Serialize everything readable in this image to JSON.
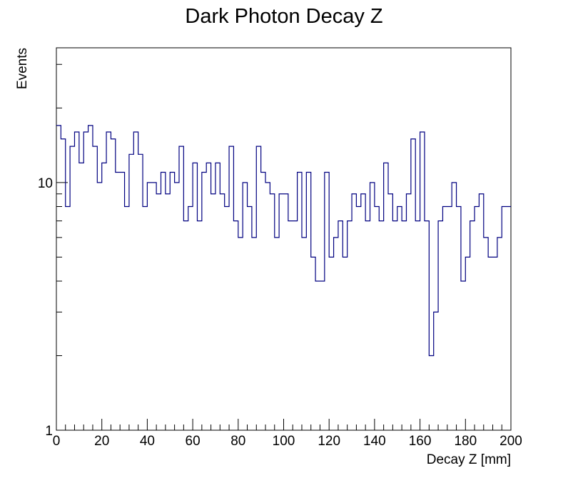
{
  "chart_data": {
    "type": "histogram",
    "title": "Dark Photon Decay Z",
    "xlabel": "Decay Z [mm]",
    "ylabel": "Events",
    "xlim": [
      0,
      200
    ],
    "ylim": [
      1,
      35
    ],
    "y_scale": "log",
    "grid": false,
    "legend": "none",
    "line_color": "#000080",
    "x_ticks": [
      0,
      20,
      40,
      60,
      80,
      100,
      120,
      140,
      160,
      180,
      200
    ],
    "x_tick_labels": [
      "0",
      "20",
      "40",
      "60",
      "80",
      "100",
      "120",
      "140",
      "160",
      "180",
      "200"
    ],
    "y_tick_labels": [
      {
        "value": 1,
        "label": "1"
      },
      {
        "value": 10,
        "label": "10"
      }
    ],
    "bin_edges_start": 0,
    "bin_width": 2,
    "values": [
      17,
      15,
      8,
      14,
      16,
      12,
      16,
      17,
      14,
      10,
      12,
      16,
      15,
      11,
      11,
      8,
      13,
      16,
      13,
      8,
      10,
      10,
      9,
      11,
      9,
      11,
      10,
      14,
      7,
      8,
      12,
      7,
      11,
      12,
      9,
      12,
      9,
      8,
      14,
      7,
      6,
      10,
      8,
      6,
      14,
      11,
      10,
      9,
      6,
      9,
      9,
      7,
      7,
      11,
      6,
      11,
      5,
      4,
      4,
      11,
      5,
      6,
      7,
      5,
      7,
      9,
      8,
      9,
      7,
      10,
      8,
      7,
      12,
      9,
      7,
      8,
      7,
      9,
      15,
      7,
      16,
      7,
      2,
      3,
      7,
      8,
      8,
      10,
      8,
      4,
      5,
      7,
      8,
      9,
      6,
      5,
      5,
      6,
      8,
      8
    ]
  }
}
